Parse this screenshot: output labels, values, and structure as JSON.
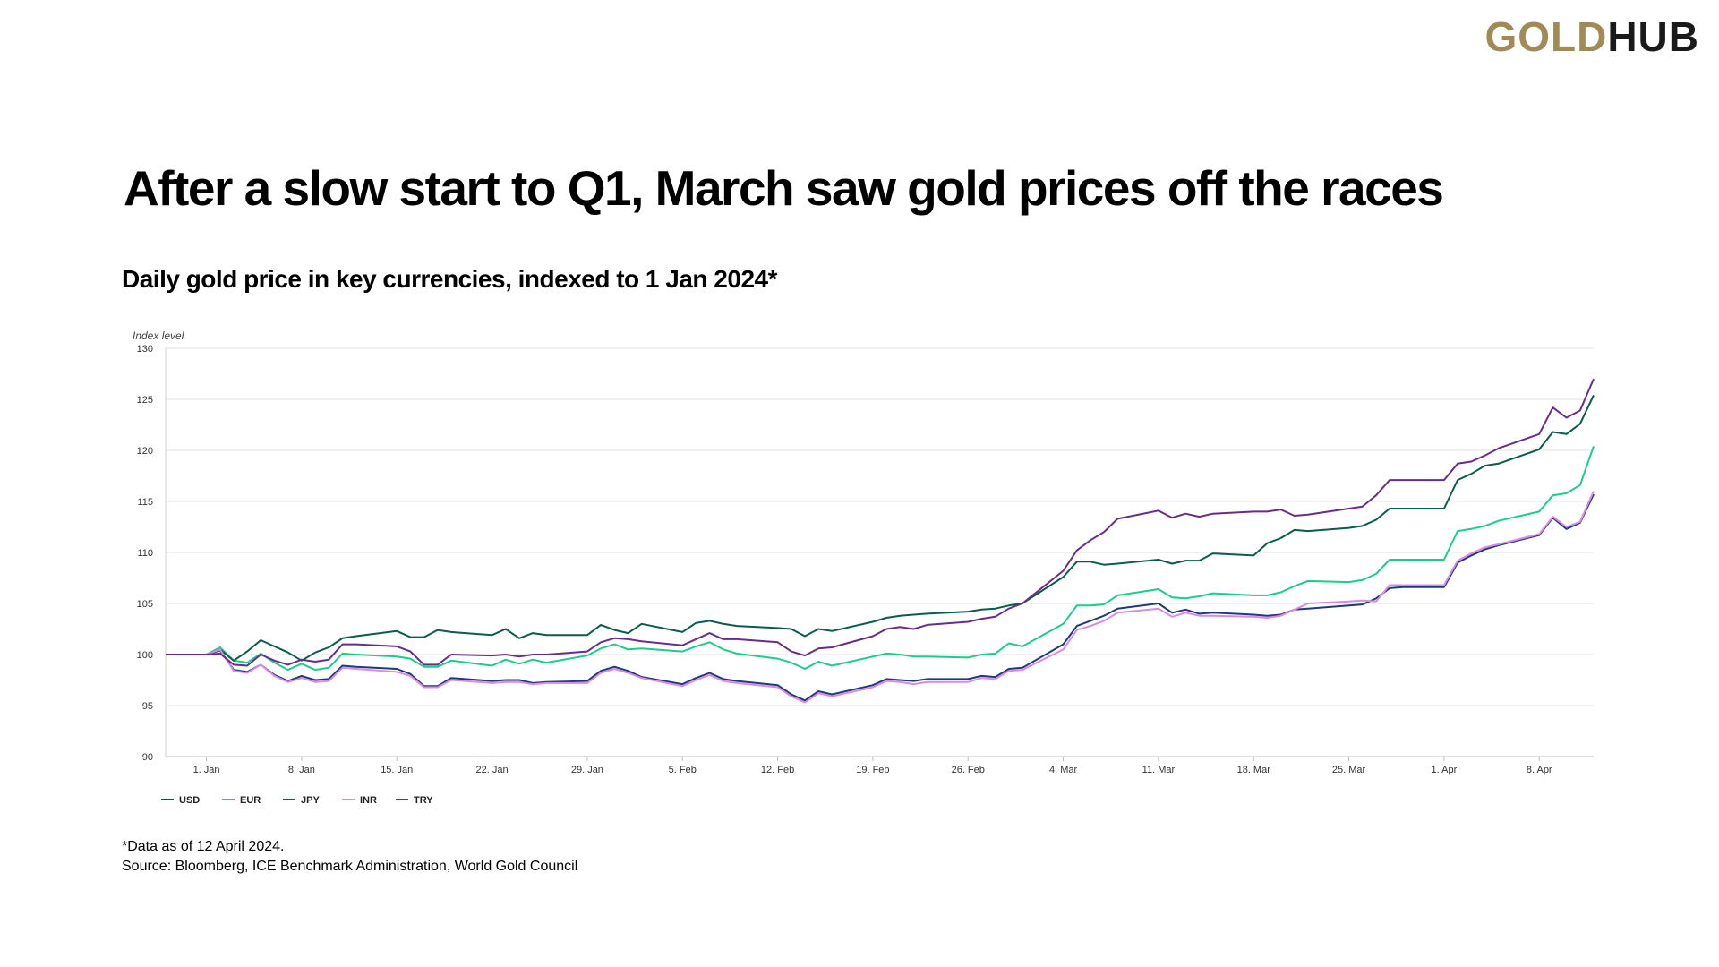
{
  "logo": {
    "part1": "GOLD",
    "part2": "HUB",
    "part1_color": "#a08a55",
    "part2_color": "#1a1a1a"
  },
  "title": "After a slow start to Q1, March saw gold prices off the races",
  "subtitle": "Daily gold price in key currencies, indexed to 1 Jan 2024*",
  "footnotes": {
    "asof": "*Data as of 12 April 2024.",
    "source": "Source: Bloomberg, ICE Benchmark Administration, World Gold Council"
  },
  "chart_data": {
    "type": "line",
    "ylabel": "Index level",
    "ylim": [
      90,
      130
    ],
    "yticks": [
      90,
      95,
      100,
      105,
      110,
      115,
      120,
      125,
      130
    ],
    "xlim": [
      0,
      102
    ],
    "x_tick_positions": [
      0,
      7,
      14,
      21,
      28,
      35,
      42,
      49,
      56,
      63,
      70,
      77,
      84,
      91,
      98
    ],
    "x_tick_labels": [
      "1. Jan",
      "8. Jan",
      "15. Jan",
      "22. Jan",
      "29. Jan",
      "5. Feb",
      "12. Feb",
      "19. Feb",
      "26. Feb",
      "4. Mar",
      "11. Mar",
      "18. Mar",
      "25. Mar",
      "1. Apr",
      "8. Apr"
    ],
    "grid": true,
    "legend_position": "bottom-left",
    "x": [
      -3,
      0,
      1,
      2,
      3,
      4,
      5,
      6,
      7,
      8,
      9,
      10,
      11,
      14,
      15,
      16,
      17,
      18,
      21,
      22,
      23,
      24,
      25,
      28,
      29,
      30,
      31,
      32,
      35,
      36,
      37,
      38,
      39,
      42,
      43,
      44,
      45,
      46,
      49,
      50,
      51,
      52,
      53,
      56,
      57,
      58,
      59,
      60,
      63,
      64,
      65,
      66,
      67,
      70,
      71,
      72,
      73,
      74,
      77,
      78,
      79,
      80,
      81,
      84,
      85,
      86,
      87,
      88,
      91,
      92,
      93,
      94,
      95,
      98,
      99,
      100,
      101,
      102
    ],
    "series": [
      {
        "name": "USD",
        "color": "#1f3a7a",
        "values": [
          100,
          100,
          100.4,
          98.5,
          98.3,
          99,
          98,
          97.4,
          97.9,
          97.5,
          97.6,
          98.9,
          98.8,
          98.6,
          98.1,
          96.9,
          96.9,
          97.7,
          97.4,
          97.5,
          97.5,
          97.2,
          97.3,
          97.4,
          98.4,
          98.8,
          98.4,
          97.8,
          97.1,
          97.7,
          98.2,
          97.6,
          97.4,
          97,
          96.1,
          95.5,
          96.4,
          96.1,
          97,
          97.6,
          97.5,
          97.4,
          97.6,
          97.6,
          97.9,
          97.8,
          98.6,
          98.7,
          101,
          102.8,
          103.3,
          103.8,
          104.5,
          105,
          104.1,
          104.4,
          104,
          104.1,
          103.9,
          103.8,
          103.9,
          104.4,
          104.5,
          104.8,
          104.9,
          105.5,
          106.5,
          106.6,
          106.6,
          109,
          109.7,
          110.3,
          110.7,
          111.7,
          113.4,
          112.3,
          112.9,
          115.7
        ]
      },
      {
        "name": "EUR",
        "color": "#1ccc8a",
        "values": [
          100,
          100,
          100.7,
          99.4,
          99.2,
          100.1,
          99.2,
          98.5,
          99.1,
          98.5,
          98.7,
          100.1,
          100,
          99.8,
          99.6,
          98.8,
          98.8,
          99.4,
          98.9,
          99.5,
          99.1,
          99.5,
          99.2,
          99.9,
          100.6,
          101,
          100.5,
          100.6,
          100.3,
          100.8,
          101.2,
          100.5,
          100.1,
          99.6,
          99.2,
          98.6,
          99.3,
          98.9,
          99.8,
          100.1,
          100,
          99.8,
          99.8,
          99.7,
          100,
          100.1,
          101.1,
          100.8,
          103,
          104.8,
          104.8,
          104.9,
          105.8,
          106.4,
          105.6,
          105.5,
          105.7,
          106,
          105.8,
          105.8,
          106.1,
          106.7,
          107.2,
          107.1,
          107.3,
          107.9,
          109.3,
          109.3,
          109.3,
          112.1,
          112.3,
          112.6,
          113.1,
          114,
          115.6,
          115.8,
          116.6,
          120.4
        ]
      },
      {
        "name": "JPY",
        "color": "#0b5c4c",
        "values": [
          100,
          100,
          100.5,
          99.4,
          100.3,
          101.4,
          100.8,
          100.2,
          99.4,
          100.2,
          100.7,
          101.6,
          101.8,
          102.3,
          101.7,
          101.7,
          102.4,
          102.2,
          101.9,
          102.5,
          101.6,
          102.1,
          101.9,
          101.9,
          102.9,
          102.4,
          102.1,
          103,
          102.2,
          103.1,
          103.3,
          103,
          102.8,
          102.6,
          102.5,
          101.8,
          102.5,
          102.3,
          103.2,
          103.6,
          103.8,
          103.9,
          104,
          104.2,
          104.4,
          104.5,
          104.8,
          105,
          107.6,
          109.1,
          109.1,
          108.8,
          108.9,
          109.3,
          108.9,
          109.2,
          109.2,
          109.9,
          109.7,
          110.9,
          111.4,
          112.2,
          112.1,
          112.4,
          112.6,
          113.2,
          114.3,
          114.3,
          114.3,
          117.1,
          117.7,
          118.5,
          118.7,
          120.1,
          121.8,
          121.6,
          122.6,
          125.4
        ]
      },
      {
        "name": "INR",
        "color": "#d98ae6",
        "values": [
          100,
          100,
          100.5,
          98.4,
          98.2,
          99,
          97.9,
          97.3,
          97.7,
          97.3,
          97.4,
          98.7,
          98.6,
          98.3,
          97.9,
          96.8,
          96.8,
          97.5,
          97.2,
          97.3,
          97.3,
          97.1,
          97.2,
          97.2,
          98.2,
          98.6,
          98.2,
          97.7,
          96.9,
          97.5,
          98,
          97.4,
          97.2,
          96.8,
          95.9,
          95.3,
          96.2,
          95.9,
          96.8,
          97.4,
          97.3,
          97.1,
          97.3,
          97.3,
          97.7,
          97.6,
          98.4,
          98.5,
          100.5,
          102.4,
          102.8,
          103.3,
          104.1,
          104.5,
          103.7,
          104.1,
          103.8,
          103.8,
          103.7,
          103.6,
          103.8,
          104.4,
          105,
          105.2,
          105.3,
          105.2,
          106.8,
          106.8,
          106.8,
          109.2,
          109.9,
          110.5,
          110.8,
          111.8,
          113.5,
          112.5,
          113,
          116
        ]
      },
      {
        "name": "TRY",
        "color": "#6a2d86",
        "values": [
          100,
          100,
          100.1,
          99,
          98.9,
          100,
          99.4,
          99,
          99.5,
          99.3,
          99.5,
          101,
          101,
          100.8,
          100.3,
          99,
          99,
          100,
          99.9,
          100,
          99.8,
          100,
          100,
          100.3,
          101.2,
          101.6,
          101.5,
          101.3,
          100.9,
          101.5,
          102.1,
          101.5,
          101.5,
          101.2,
          100.3,
          99.9,
          100.6,
          100.7,
          101.8,
          102.5,
          102.7,
          102.5,
          102.9,
          103.2,
          103.5,
          103.7,
          104.5,
          105,
          108.2,
          110.2,
          111.2,
          112,
          113.3,
          114.1,
          113.4,
          113.8,
          113.5,
          113.8,
          114,
          114,
          114.2,
          113.6,
          113.7,
          114.3,
          114.5,
          115.6,
          117.1,
          117.1,
          117.1,
          118.7,
          118.9,
          119.5,
          120.2,
          121.6,
          124.2,
          123.2,
          123.9,
          127
        ]
      }
    ]
  }
}
